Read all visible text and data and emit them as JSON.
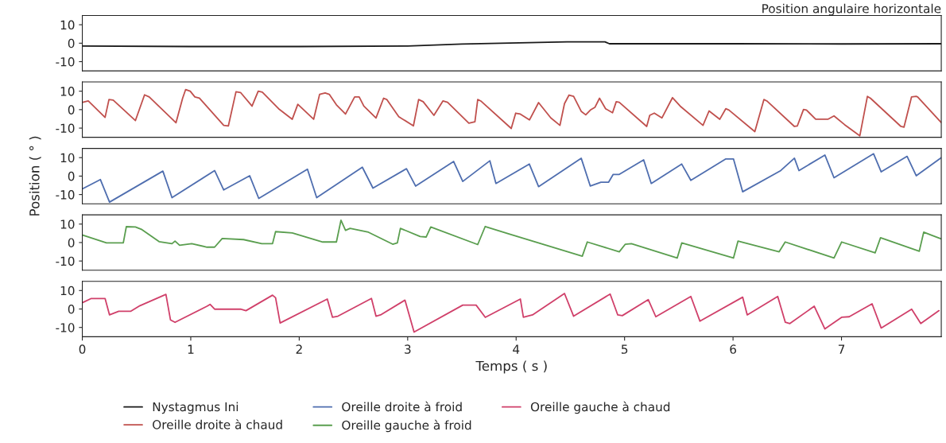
{
  "chart_data": [
    {
      "type": "line",
      "title": "Position angulaire horizontale",
      "xlim": [
        0,
        7.92
      ],
      "ylim": [
        -15,
        15
      ],
      "yticks": [
        -10,
        0,
        10
      ],
      "tick_labels": "y",
      "legend": "bottom",
      "grid": false,
      "series": [
        {
          "name": "Nystagmus Ini",
          "color": "#1a1a1a",
          "x": [
            0,
            1,
            2,
            3,
            3.5,
            4.47,
            4.82,
            4.86,
            6,
            7,
            7.92
          ],
          "values": [
            -1.5,
            -1.8,
            -1.8,
            -1.5,
            -0.5,
            0.7,
            0.7,
            -0.3,
            -0.3,
            -0.4,
            -0.3
          ]
        }
      ]
    },
    {
      "type": "line",
      "xlim": [
        0,
        7.92
      ],
      "ylim": [
        -15,
        15
      ],
      "yticks": [
        -10,
        0,
        10
      ],
      "tick_labels": "y",
      "legend": "bottom",
      "grid": false,
      "series": [
        {
          "name": "Oreille droite à chaud",
          "color": "#c0504d",
          "x": [
            0.004,
            0.055,
            0.21,
            0.246,
            0.285,
            0.49,
            0.574,
            0.617,
            0.864,
            0.925,
            0.953,
            0.995,
            1.038,
            1.08,
            1.304,
            1.347,
            1.417,
            1.459,
            1.565,
            1.622,
            1.66,
            1.81,
            1.936,
            1.987,
            2.133,
            2.188,
            2.239,
            2.277,
            2.343,
            2.427,
            2.511,
            2.553,
            2.596,
            2.708,
            2.778,
            2.807,
            2.918,
            3.053,
            3.101,
            3.143,
            3.242,
            3.325,
            3.368,
            3.564,
            3.62,
            3.646,
            3.674,
            3.955,
            3.996,
            4.039,
            4.123,
            4.207,
            4.32,
            4.404,
            4.446,
            4.488,
            4.53,
            4.6,
            4.642,
            4.685,
            4.726,
            4.769,
            4.825,
            4.889,
            4.923,
            4.951,
            5.204,
            5.232,
            5.274,
            5.344,
            5.442,
            5.513,
            5.723,
            5.779,
            5.878,
            5.933,
            5.962,
            6.201,
            6.285,
            6.312,
            6.566,
            6.593,
            6.65,
            6.677,
            6.762,
            6.874,
            6.931,
            7.028,
            7.169,
            7.239,
            7.267,
            7.548,
            7.576,
            7.646,
            7.688,
            7.702,
            7.92
          ],
          "values": [
            4.0,
            4.7,
            -4.2,
            5.5,
            5.2,
            -5.9,
            8.0,
            6.9,
            -7.1,
            6.2,
            10.9,
            10.0,
            6.9,
            6.2,
            -8.5,
            -8.8,
            9.7,
            9.3,
            1.9,
            10.0,
            9.5,
            0.5,
            -5.2,
            2.9,
            -5.2,
            8.3,
            9.0,
            8.3,
            2.6,
            -2.4,
            6.9,
            6.9,
            1.9,
            -4.5,
            6.2,
            5.5,
            -3.8,
            -8.8,
            5.5,
            4.3,
            -3.1,
            4.7,
            4.0,
            -7.3,
            -6.6,
            5.5,
            4.7,
            -10.2,
            -1.9,
            -2.4,
            -5.6,
            3.8,
            -4.5,
            -8.5,
            3.3,
            7.9,
            7.2,
            -0.9,
            -2.8,
            -0.2,
            1.2,
            6.2,
            0.5,
            -1.7,
            4.3,
            4.0,
            -9.1,
            -3.1,
            -1.9,
            -4.5,
            6.5,
            1.9,
            -8.5,
            -0.7,
            -5.2,
            0.5,
            -0.2,
            -11.9,
            5.5,
            4.7,
            -9.1,
            -8.8,
            0.1,
            -0.2,
            -5.2,
            -5.2,
            -3.4,
            -8.1,
            -14.2,
            7.2,
            6.2,
            -9.1,
            -9.5,
            6.9,
            7.2,
            6.9,
            -7.0
          ]
        }
      ]
    },
    {
      "type": "line",
      "ylabel": "Position ( ° )",
      "xlim": [
        0,
        7.92
      ],
      "ylim": [
        -15,
        15
      ],
      "yticks": [
        -10,
        0,
        10
      ],
      "tick_labels": "y",
      "legend": "bottom",
      "grid": false,
      "series": [
        {
          "name": "Oreille droite à froid",
          "color": "#4f6eaf",
          "x": [
            0.004,
            0.167,
            0.251,
            0.743,
            0.827,
            1.22,
            1.304,
            1.543,
            1.627,
            2.076,
            2.161,
            2.582,
            2.68,
            2.989,
            3.073,
            3.424,
            3.508,
            3.758,
            3.814,
            4.122,
            4.207,
            4.6,
            4.684,
            4.782,
            4.853,
            4.895,
            4.951,
            5.176,
            5.246,
            5.527,
            5.611,
            5.934,
            6.004,
            6.089,
            6.44,
            6.566,
            6.608,
            6.847,
            6.931,
            7.296,
            7.366,
            7.605,
            7.689,
            7.92
          ],
          "values": [
            -6.8,
            -1.9,
            -14.1,
            2.7,
            -11.7,
            3.0,
            -7.5,
            0.2,
            -12.1,
            3.7,
            -11.7,
            4.8,
            -6.5,
            4.0,
            -5.4,
            7.9,
            -2.9,
            8.3,
            -4.0,
            6.5,
            -5.7,
            9.7,
            -5.4,
            -3.3,
            -3.3,
            0.9,
            0.9,
            8.8,
            -4.0,
            6.5,
            -2.3,
            9.3,
            9.3,
            -8.5,
            3.0,
            9.7,
            3.0,
            11.4,
            -0.9,
            12.1,
            2.3,
            10.7,
            0.2,
            10.0
          ]
        }
      ]
    },
    {
      "type": "line",
      "xlim": [
        0,
        7.92
      ],
      "ylim": [
        -15,
        15
      ],
      "yticks": [
        -10,
        0,
        10
      ],
      "tick_labels": "y",
      "legend": "bottom",
      "grid": false,
      "series": [
        {
          "name": "Oreille gauche à froid",
          "color": "#5a9e4f",
          "x": [
            0.004,
            0.223,
            0.378,
            0.406,
            0.49,
            0.55,
            0.708,
            0.827,
            0.855,
            0.897,
            1.009,
            1.15,
            1.22,
            1.29,
            1.487,
            1.655,
            1.754,
            1.782,
            1.936,
            2.217,
            2.343,
            2.385,
            2.427,
            2.469,
            2.638,
            2.862,
            2.905,
            2.933,
            3.115,
            3.171,
            3.213,
            3.646,
            3.715,
            3.94,
            4.61,
            4.656,
            4.951,
            5.007,
            5.063,
            5.485,
            5.527,
            6.004,
            6.046,
            6.425,
            6.481,
            6.931,
            7.001,
            7.31,
            7.36,
            7.717,
            7.758,
            7.828,
            7.92
          ],
          "values": [
            4.0,
            -0.2,
            -0.2,
            8.6,
            8.4,
            7.0,
            0.5,
            -0.6,
            0.8,
            -1.5,
            -0.6,
            -2.5,
            -2.5,
            2.2,
            1.6,
            -0.6,
            -0.6,
            5.9,
            5.2,
            0.3,
            0.3,
            12.1,
            6.6,
            7.7,
            5.6,
            -0.9,
            -0.2,
            7.7,
            3.3,
            3.0,
            8.4,
            -1.1,
            8.7,
            4.6,
            -7.4,
            0.3,
            -5.0,
            -0.9,
            -0.6,
            -8.4,
            -0.2,
            -8.4,
            0.8,
            -5.0,
            0.3,
            -8.4,
            0.3,
            -5.6,
            2.6,
            -4.7,
            5.6,
            4.0,
            2.0
          ]
        }
      ]
    },
    {
      "type": "line",
      "xlabel": "Temps ( s )",
      "xlim": [
        0,
        7.92
      ],
      "xticks": [
        0,
        1,
        2,
        3,
        4,
        5,
        6,
        7
      ],
      "ylim": [
        -15,
        15
      ],
      "yticks": [
        -10,
        0,
        10
      ],
      "legend": "bottom",
      "grid": false,
      "series": [
        {
          "name": "Oreille gauche à chaud",
          "color": "#d0406a",
          "x": [
            0.004,
            0.083,
            0.21,
            0.251,
            0.336,
            0.448,
            0.532,
            0.771,
            0.813,
            0.855,
            1.15,
            1.178,
            1.22,
            1.459,
            1.509,
            1.754,
            1.782,
            1.824,
            2.259,
            2.307,
            2.357,
            2.666,
            2.708,
            2.75,
            2.975,
            3.059,
            3.508,
            3.631,
            3.716,
            4.039,
            4.067,
            4.151,
            4.446,
            4.53,
            4.867,
            4.937,
            4.979,
            5.218,
            5.288,
            5.611,
            5.695,
            6.089,
            6.131,
            6.412,
            6.482,
            6.524,
            6.749,
            6.847,
            7.001,
            7.071,
            7.282,
            7.366,
            7.647,
            7.731,
            7.899
          ],
          "values": [
            3.5,
            5.7,
            5.7,
            -3.2,
            -1.2,
            -1.2,
            1.8,
            7.9,
            -5.9,
            -7.2,
            1.5,
            2.5,
            -0.1,
            -0.1,
            -0.9,
            7.5,
            6.1,
            -7.6,
            5.4,
            -4.5,
            -3.9,
            5.7,
            -3.9,
            -3.2,
            4.8,
            -12.5,
            2.1,
            2.1,
            -4.5,
            5.4,
            -4.5,
            -3.2,
            8.4,
            -3.9,
            8.1,
            -3.2,
            -3.6,
            5.1,
            -4.2,
            6.8,
            -6.6,
            6.4,
            -3.2,
            6.8,
            -7.2,
            -7.9,
            1.5,
            -10.8,
            -4.5,
            -4.2,
            2.8,
            -10.3,
            -0.1,
            -7.9,
            -0.9
          ]
        }
      ]
    }
  ]
}
